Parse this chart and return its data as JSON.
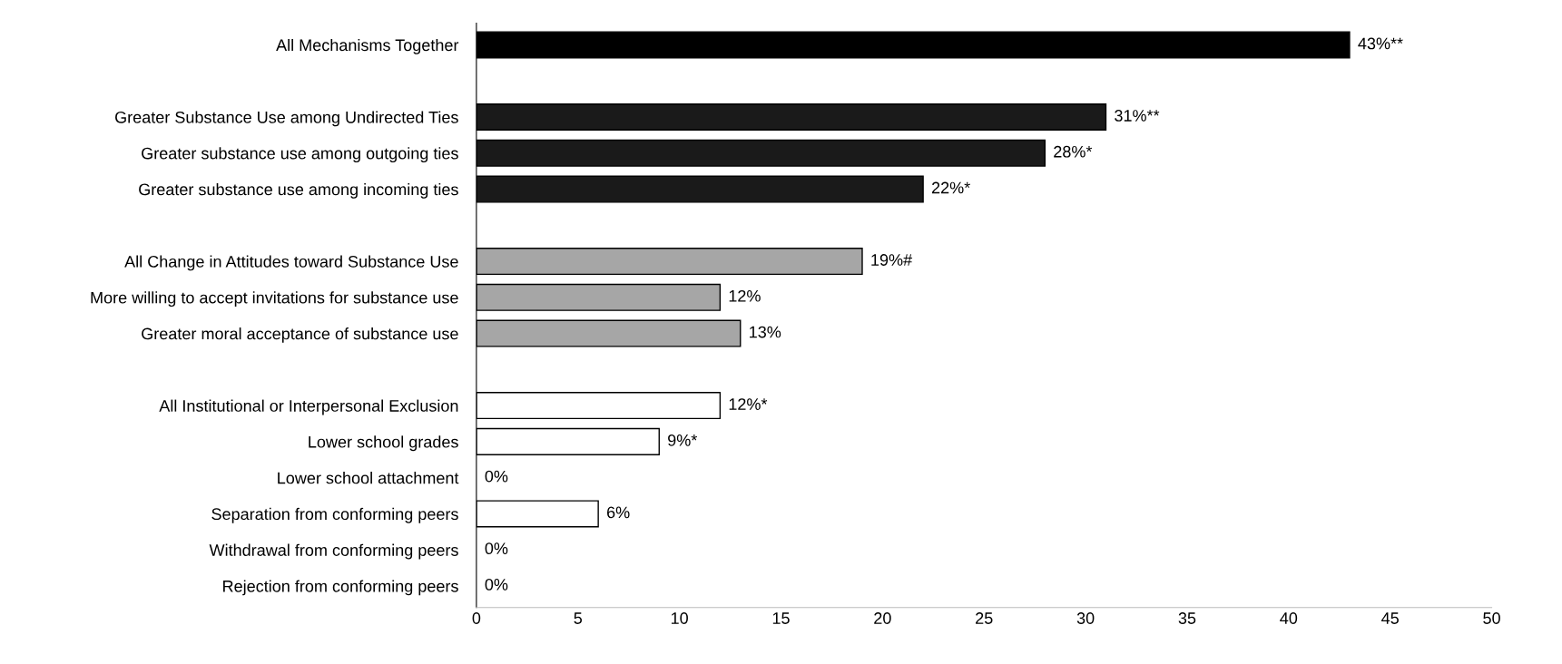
{
  "chart_data": {
    "type": "bar",
    "orientation": "horizontal",
    "categories": [
      "All Mechanisms Together",
      null,
      "Greater Substance Use among Undirected Ties",
      "Greater substance use among outgoing ties",
      "Greater substance use among incoming ties",
      null,
      "All Change in Attitudes toward Substance Use",
      "More willing to accept invitations for substance use",
      "Greater moral acceptance of substance use",
      null,
      "All Institutional or Interpersonal Exclusion",
      "Lower school grades",
      "Lower school attachment",
      "Separation from conforming peers",
      "Withdrawal from conforming peers",
      "Rejection from conforming peers"
    ],
    "values": [
      43,
      null,
      31,
      28,
      22,
      null,
      19,
      12,
      13,
      null,
      12,
      9,
      0,
      6,
      0,
      0
    ],
    "colors": [
      "#000000",
      null,
      "#1a1a1a",
      "#1a1a1a",
      "#1a1a1a",
      null,
      "#a6a6a6",
      "#a6a6a6",
      "#a6a6a6",
      null,
      "#ffffff",
      "#ffffff",
      "#ffffff",
      "#ffffff",
      "#ffffff",
      "#ffffff"
    ],
    "value_labels": [
      "43%**",
      null,
      "31%**",
      "28%*",
      "22%*",
      null,
      "19%#",
      "12%",
      "13%",
      null,
      "12%*",
      "9%*",
      "0%",
      "6%",
      "0%",
      "0%"
    ],
    "xlim": [
      0,
      50
    ],
    "xticks": [
      0,
      5,
      10,
      15,
      20,
      25,
      30,
      35,
      40,
      45,
      50
    ],
    "grid": false,
    "legend": false
  }
}
